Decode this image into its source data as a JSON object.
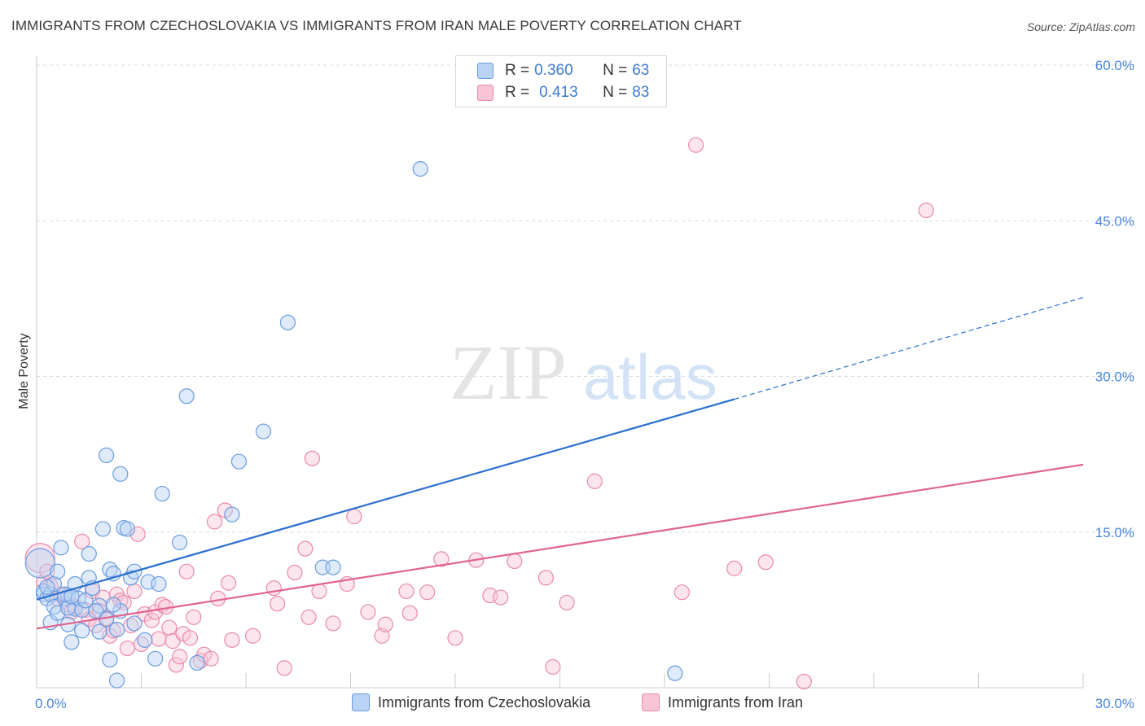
{
  "header": {
    "title": "IMMIGRANTS FROM CZECHOSLOVAKIA VS IMMIGRANTS FROM IRAN MALE POVERTY CORRELATION CHART",
    "source": "Source: ZipAtlas.com"
  },
  "watermark": {
    "zip": "ZIP",
    "atlas": "atlas"
  },
  "legend": {
    "rows": [
      {
        "r_label": "R =",
        "r_value": "0.360",
        "n_label": "N =",
        "n_value": "63"
      },
      {
        "r_label": "R =",
        "r_value": "0.413",
        "n_label": "N =",
        "n_value": "83"
      }
    ]
  },
  "bottom_legend": {
    "series_1": "Immigrants from Czechoslovakia",
    "series_2": "Immigrants from Iran"
  },
  "colors": {
    "blue_fill": "#b9d3f5",
    "blue_stroke": "#6a9be0",
    "blue_line": "#2a6fd0",
    "pink_fill": "#f8c5d6",
    "pink_stroke": "#e88aa9",
    "pink_line": "#e0648f",
    "tick_text": "#4a86d8",
    "grid": "#dcdcdc"
  },
  "chart_data": {
    "type": "scatter",
    "title": "IMMIGRANTS FROM CZECHOSLOVAKIA VS IMMIGRANTS FROM IRAN MALE POVERTY CORRELATION CHART",
    "xlabel": "",
    "ylabel": "Male Poverty",
    "xlim": [
      0,
      30
    ],
    "ylim": [
      0,
      60
    ],
    "x_ticks": [
      "0.0%",
      "30.0%"
    ],
    "y_ticks": [
      "15.0%",
      "30.0%",
      "45.0%",
      "60.0%"
    ],
    "y_tick_values": [
      15,
      30,
      45,
      60
    ],
    "grid": true,
    "legend_position": "top-center",
    "series": [
      {
        "name": "Immigrants from Czechoslovakia",
        "color": "blue",
        "r": 0.36,
        "n": 63,
        "trend": {
          "x0": 0.0,
          "y0": 8.5,
          "x1": 20.0,
          "y1": 27.8,
          "dashed_to_x": 30.0,
          "dashed_to_y": 37.6
        },
        "points": [
          [
            0.1,
            12.0
          ],
          [
            0.2,
            9.0
          ],
          [
            0.2,
            9.3
          ],
          [
            0.3,
            8.6
          ],
          [
            0.4,
            9.0
          ],
          [
            0.4,
            6.3
          ],
          [
            0.5,
            10.0
          ],
          [
            0.5,
            7.8
          ],
          [
            0.6,
            7.2
          ],
          [
            0.6,
            11.2
          ],
          [
            0.7,
            13.5
          ],
          [
            0.8,
            8.6
          ],
          [
            0.9,
            6.1
          ],
          [
            0.9,
            8.9
          ],
          [
            1.0,
            4.4
          ],
          [
            1.1,
            10.0
          ],
          [
            1.1,
            7.6
          ],
          [
            1.2,
            8.6
          ],
          [
            1.3,
            7.5
          ],
          [
            1.3,
            5.5
          ],
          [
            1.5,
            10.6
          ],
          [
            1.5,
            12.9
          ],
          [
            1.6,
            9.6
          ],
          [
            1.8,
            5.4
          ],
          [
            1.8,
            7.9
          ],
          [
            1.9,
            15.3
          ],
          [
            2.0,
            6.6
          ],
          [
            2.0,
            22.4
          ],
          [
            2.1,
            2.7
          ],
          [
            2.1,
            11.4
          ],
          [
            2.2,
            11.0
          ],
          [
            2.3,
            0.7
          ],
          [
            2.3,
            5.6
          ],
          [
            2.4,
            7.4
          ],
          [
            2.4,
            20.6
          ],
          [
            2.5,
            15.4
          ],
          [
            2.6,
            15.3
          ],
          [
            2.7,
            10.6
          ],
          [
            2.8,
            11.2
          ],
          [
            2.8,
            6.2
          ],
          [
            3.1,
            4.6
          ],
          [
            3.2,
            10.2
          ],
          [
            3.4,
            2.8
          ],
          [
            3.5,
            10.0
          ],
          [
            3.6,
            18.7
          ],
          [
            4.1,
            14.0
          ],
          [
            4.3,
            28.1
          ],
          [
            4.6,
            2.4
          ],
          [
            5.6,
            16.7
          ],
          [
            5.8,
            21.8
          ],
          [
            6.5,
            24.7
          ],
          [
            7.2,
            35.2
          ],
          [
            8.2,
            11.6
          ],
          [
            8.5,
            11.6
          ],
          [
            11.0,
            50.0
          ],
          [
            18.3,
            1.4
          ],
          [
            0.3,
            9.7
          ],
          [
            0.8,
            9.0
          ],
          [
            1.4,
            8.4
          ],
          [
            0.9,
            7.7
          ],
          [
            1.0,
            8.8
          ],
          [
            1.7,
            7.4
          ],
          [
            2.2,
            8.0
          ]
        ]
      },
      {
        "name": "Immigrants from Iran",
        "color": "pink",
        "r": 0.413,
        "n": 83,
        "trend": {
          "x0": 0.0,
          "y0": 5.7,
          "x1": 30.0,
          "y1": 21.5
        },
        "points": [
          [
            0.1,
            12.5
          ],
          [
            0.2,
            10.2
          ],
          [
            0.3,
            11.2
          ],
          [
            0.4,
            9.8
          ],
          [
            0.6,
            8.6
          ],
          [
            0.7,
            9.0
          ],
          [
            0.9,
            8.0
          ],
          [
            1.0,
            7.3
          ],
          [
            1.1,
            7.8
          ],
          [
            1.3,
            14.1
          ],
          [
            1.4,
            7.5
          ],
          [
            1.5,
            6.6
          ],
          [
            1.6,
            9.3
          ],
          [
            1.7,
            6.0
          ],
          [
            1.8,
            7.4
          ],
          [
            1.9,
            8.7
          ],
          [
            2.0,
            6.7
          ],
          [
            2.1,
            5.0
          ],
          [
            2.2,
            5.5
          ],
          [
            2.3,
            9.0
          ],
          [
            2.4,
            8.4
          ],
          [
            2.5,
            8.2
          ],
          [
            2.6,
            3.8
          ],
          [
            2.7,
            6.0
          ],
          [
            2.8,
            9.3
          ],
          [
            2.9,
            14.8
          ],
          [
            3.0,
            4.2
          ],
          [
            3.1,
            7.1
          ],
          [
            3.3,
            6.5
          ],
          [
            3.4,
            7.3
          ],
          [
            3.5,
            4.7
          ],
          [
            3.6,
            8.0
          ],
          [
            3.7,
            7.8
          ],
          [
            3.8,
            5.8
          ],
          [
            3.9,
            4.5
          ],
          [
            4.0,
            2.2
          ],
          [
            4.1,
            3.0
          ],
          [
            4.2,
            5.2
          ],
          [
            4.3,
            11.2
          ],
          [
            4.4,
            4.8
          ],
          [
            4.5,
            6.8
          ],
          [
            4.7,
            2.6
          ],
          [
            4.8,
            3.2
          ],
          [
            5.0,
            2.8
          ],
          [
            5.1,
            16.0
          ],
          [
            5.2,
            8.6
          ],
          [
            5.4,
            17.1
          ],
          [
            5.5,
            10.1
          ],
          [
            5.6,
            4.6
          ],
          [
            6.2,
            5.0
          ],
          [
            6.8,
            9.6
          ],
          [
            6.9,
            8.1
          ],
          [
            7.1,
            1.9
          ],
          [
            7.4,
            11.1
          ],
          [
            7.7,
            13.4
          ],
          [
            7.8,
            6.8
          ],
          [
            7.9,
            22.1
          ],
          [
            8.1,
            9.3
          ],
          [
            8.5,
            6.2
          ],
          [
            9.1,
            16.5
          ],
          [
            9.5,
            7.3
          ],
          [
            9.9,
            5.0
          ],
          [
            10.0,
            6.1
          ],
          [
            10.6,
            9.3
          ],
          [
            10.7,
            7.2
          ],
          [
            11.2,
            9.2
          ],
          [
            11.6,
            12.4
          ],
          [
            12.0,
            4.8
          ],
          [
            12.6,
            12.3
          ],
          [
            13.0,
            8.9
          ],
          [
            13.3,
            8.7
          ],
          [
            13.7,
            12.2
          ],
          [
            14.6,
            10.6
          ],
          [
            14.8,
            2.0
          ],
          [
            15.2,
            8.2
          ],
          [
            16.0,
            19.9
          ],
          [
            18.5,
            9.2
          ],
          [
            18.9,
            52.3
          ],
          [
            20.0,
            11.5
          ],
          [
            20.9,
            12.1
          ],
          [
            22.0,
            0.6
          ],
          [
            25.5,
            46.0
          ],
          [
            8.9,
            10.0
          ]
        ]
      }
    ]
  }
}
